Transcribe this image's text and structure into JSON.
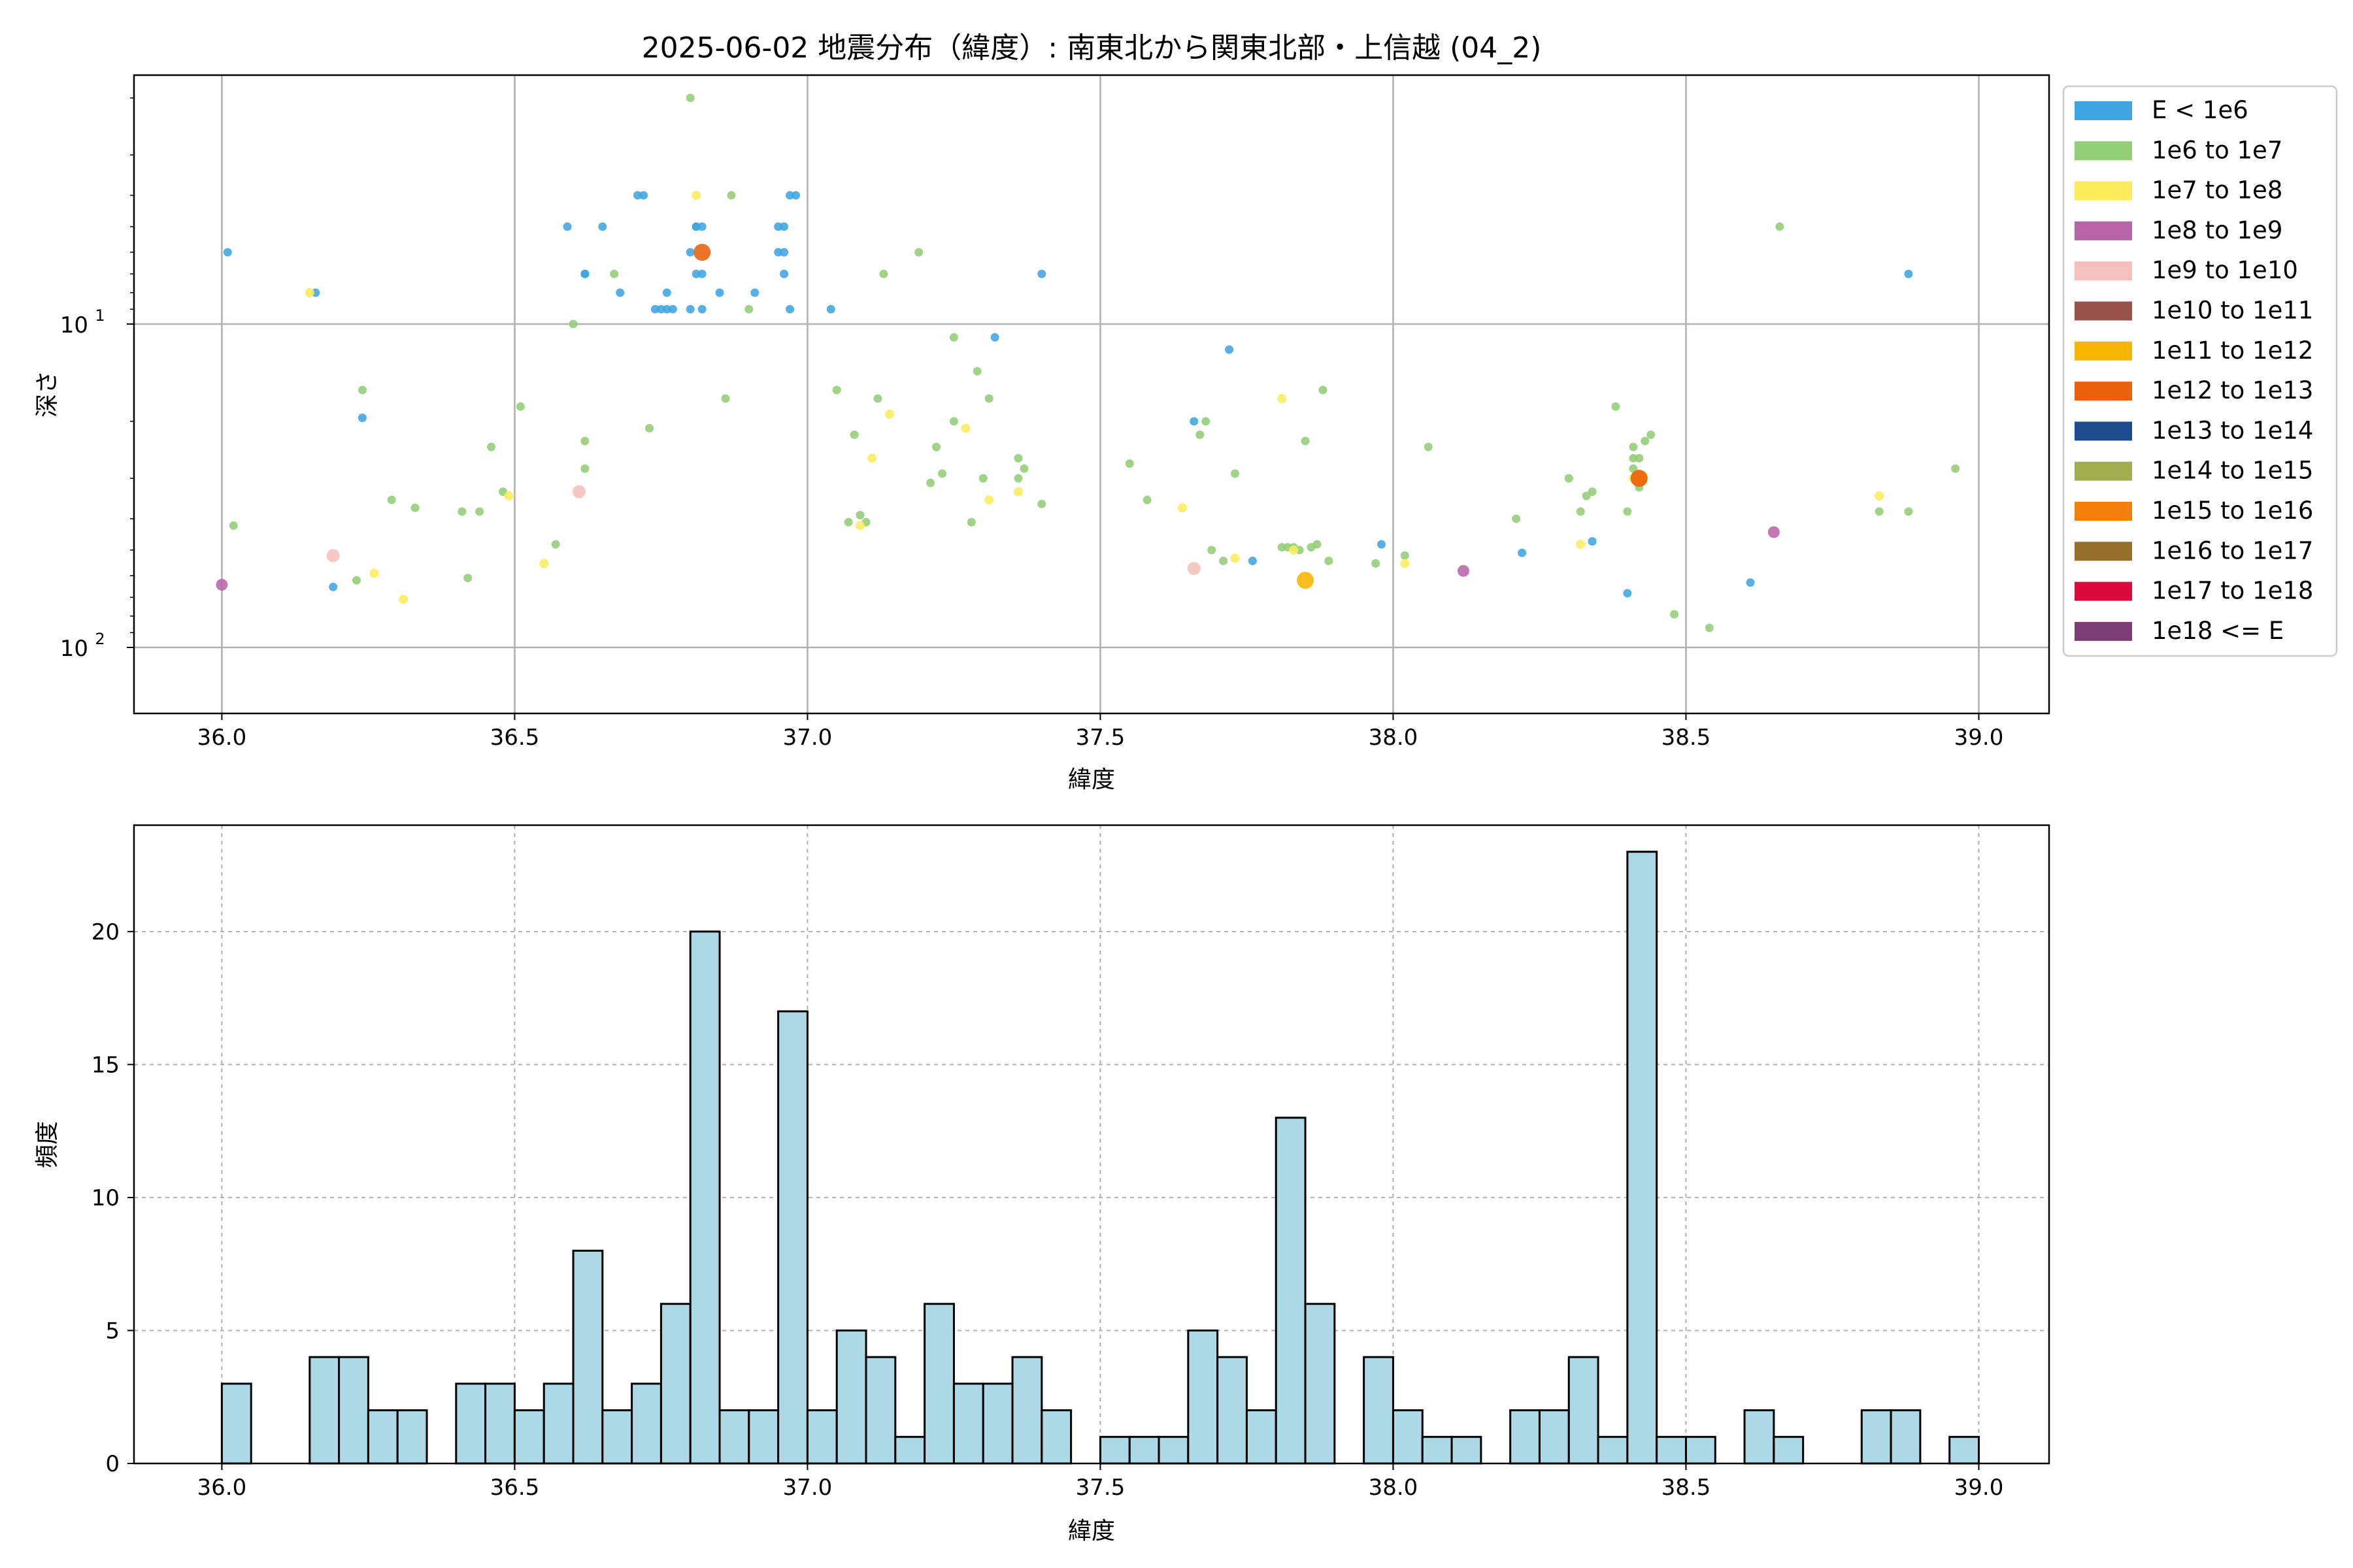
{
  "chart_data": [
    {
      "type": "scatter",
      "title": "2025-06-02 地震分布（緯度）: 南東北から関東北部・上信越 (04_2)",
      "xlabel": "緯度",
      "ylabel": "深さ",
      "xlim": [
        35.85,
        39.12
      ],
      "ylim": [
        160,
        1.7
      ],
      "yscale": "log",
      "y_inverted": true,
      "grid": true,
      "legend_position": "outside-right",
      "x_ticks": [
        "36.0",
        "36.5",
        "37.0",
        "37.5",
        "38.0",
        "38.5",
        "39.0"
      ],
      "y_ticks": [
        {
          "value": 10,
          "label": "10",
          "exp": "1"
        },
        {
          "value": 100,
          "label": "10",
          "exp": "2"
        }
      ],
      "legend": [
        {
          "label": "E < 1e6",
          "color": "#3fa5e0"
        },
        {
          "label": "1e6 to 1e7",
          "color": "#93cd77"
        },
        {
          "label": "1e7 to 1e8",
          "color": "#fcec5a"
        },
        {
          "label": "1e8 to 1e9",
          "color": "#b865a8"
        },
        {
          "label": "1e9 to 1e10",
          "color": "#f5c0bb"
        },
        {
          "label": "1e10 to 1e11",
          "color": "#97524b"
        },
        {
          "label": "1e11 to 1e12",
          "color": "#f7b500"
        },
        {
          "label": "1e12 to 1e13",
          "color": "#e9600d"
        },
        {
          "label": "1e13 to 1e14",
          "color": "#1e4a8e"
        },
        {
          "label": "1e14 to 1e15",
          "color": "#a1ae50"
        },
        {
          "label": "1e15 to 1e16",
          "color": "#f07f0c"
        },
        {
          "label": "1e16 to 1e17",
          "color": "#95702b"
        },
        {
          "label": "1e17 to 1e18",
          "color": "#dc0a3a"
        },
        {
          "label": "1e18 <= E",
          "color": "#7a3c72"
        }
      ],
      "series": [
        {
          "class": "E < 1e6",
          "color": "#3fa5e0",
          "points": [
            [
              36.01,
              6
            ],
            [
              36.16,
              8
            ],
            [
              36.19,
              65
            ],
            [
              36.24,
              19.5
            ],
            [
              36.59,
              5
            ],
            [
              36.62,
              7
            ],
            [
              36.62,
              7
            ],
            [
              36.65,
              5
            ],
            [
              36.68,
              8
            ],
            [
              36.71,
              4
            ],
            [
              36.72,
              4
            ],
            [
              36.74,
              9
            ],
            [
              36.75,
              9
            ],
            [
              36.76,
              9
            ],
            [
              36.76,
              8
            ],
            [
              36.77,
              9
            ],
            [
              36.8,
              6
            ],
            [
              36.81,
              5
            ],
            [
              36.81,
              5
            ],
            [
              36.81,
              7
            ],
            [
              36.82,
              5
            ],
            [
              36.82,
              7
            ],
            [
              36.82,
              9
            ],
            [
              36.8,
              9
            ],
            [
              36.85,
              8
            ],
            [
              36.91,
              8
            ],
            [
              36.95,
              5
            ],
            [
              36.95,
              6
            ],
            [
              36.96,
              5
            ],
            [
              36.96,
              7
            ],
            [
              36.96,
              6
            ],
            [
              36.97,
              4
            ],
            [
              36.97,
              9
            ],
            [
              36.98,
              4
            ],
            [
              37.04,
              9
            ],
            [
              37.32,
              11
            ],
            [
              37.4,
              7
            ],
            [
              37.66,
              20
            ],
            [
              37.72,
              12
            ],
            [
              37.76,
              54
            ],
            [
              37.98,
              48
            ],
            [
              38.22,
              51
            ],
            [
              38.34,
              47
            ],
            [
              38.4,
              68
            ],
            [
              38.61,
              63
            ],
            [
              38.88,
              7
            ]
          ]
        },
        {
          "class": "1e6 to 1e7",
          "color": "#93cd77",
          "points": [
            [
              36.02,
              42
            ],
            [
              36.23,
              62
            ],
            [
              36.24,
              16
            ],
            [
              36.29,
              35
            ],
            [
              36.33,
              37
            ],
            [
              36.41,
              38
            ],
            [
              36.42,
              61
            ],
            [
              36.44,
              38
            ],
            [
              36.46,
              24
            ],
            [
              36.48,
              33
            ],
            [
              36.51,
              18
            ],
            [
              36.57,
              48
            ],
            [
              36.6,
              10
            ],
            [
              36.62,
              23
            ],
            [
              36.62,
              28
            ],
            [
              36.67,
              7
            ],
            [
              36.73,
              21
            ],
            [
              36.8,
              2
            ],
            [
              36.86,
              17
            ],
            [
              36.87,
              4
            ],
            [
              36.9,
              9
            ],
            [
              37.05,
              16
            ],
            [
              37.07,
              41
            ],
            [
              37.08,
              22
            ],
            [
              37.09,
              39
            ],
            [
              37.1,
              41
            ],
            [
              37.12,
              17
            ],
            [
              37.13,
              7
            ],
            [
              37.19,
              6
            ],
            [
              37.21,
              31
            ],
            [
              37.22,
              24
            ],
            [
              37.23,
              29
            ],
            [
              37.25,
              11
            ],
            [
              37.25,
              20
            ],
            [
              37.28,
              41
            ],
            [
              37.29,
              14
            ],
            [
              37.3,
              30
            ],
            [
              37.31,
              17
            ],
            [
              37.36,
              26
            ],
            [
              37.37,
              28
            ],
            [
              37.36,
              30
            ],
            [
              37.4,
              36
            ],
            [
              37.55,
              27
            ],
            [
              37.58,
              35
            ],
            [
              37.67,
              22
            ],
            [
              37.68,
              20
            ],
            [
              37.69,
              50
            ],
            [
              37.71,
              54
            ],
            [
              37.73,
              29
            ],
            [
              37.81,
              49
            ],
            [
              37.82,
              49
            ],
            [
              37.83,
              49
            ],
            [
              37.84,
              50
            ],
            [
              37.85,
              23
            ],
            [
              37.86,
              49
            ],
            [
              37.87,
              48
            ],
            [
              37.88,
              16
            ],
            [
              37.89,
              54
            ],
            [
              37.97,
              55
            ],
            [
              38.02,
              52
            ],
            [
              38.06,
              24
            ],
            [
              38.21,
              40
            ],
            [
              38.3,
              30
            ],
            [
              38.32,
              38
            ],
            [
              38.33,
              34
            ],
            [
              38.34,
              33
            ],
            [
              38.38,
              18
            ],
            [
              38.4,
              38
            ],
            [
              38.41,
              24
            ],
            [
              38.41,
              26
            ],
            [
              38.41,
              28
            ],
            [
              38.42,
              30
            ],
            [
              38.42,
              32
            ],
            [
              38.42,
              26
            ],
            [
              38.43,
              23
            ],
            [
              38.44,
              22
            ],
            [
              38.48,
              79
            ],
            [
              38.54,
              87
            ],
            [
              38.66,
              5
            ],
            [
              38.83,
              38
            ],
            [
              38.88,
              38
            ],
            [
              38.96,
              28
            ]
          ]
        },
        {
          "class": "1e7 to 1e8",
          "color": "#fcec5a",
          "points": [
            [
              36.15,
              8
            ],
            [
              36.26,
              59
            ],
            [
              36.31,
              71
            ],
            [
              36.49,
              34
            ],
            [
              36.55,
              55
            ],
            [
              36.81,
              4
            ],
            [
              37.09,
              42
            ],
            [
              37.11,
              26
            ],
            [
              37.14,
              19
            ],
            [
              37.27,
              21
            ],
            [
              37.31,
              35
            ],
            [
              37.36,
              33
            ],
            [
              37.64,
              37
            ],
            [
              37.73,
              53
            ],
            [
              37.81,
              17
            ],
            [
              37.83,
              50
            ],
            [
              38.02,
              55
            ],
            [
              38.32,
              48
            ],
            [
              38.41,
              30
            ],
            [
              38.83,
              34
            ]
          ]
        },
        {
          "class": "1e8 to 1e9",
          "color": "#b865a8",
          "points": [
            [
              36.0,
              64
            ],
            [
              38.12,
              58
            ],
            [
              38.65,
              44
            ]
          ]
        },
        {
          "class": "1e9 to 1e10",
          "color": "#f5c0bb",
          "points": [
            [
              36.19,
              52
            ],
            [
              36.61,
              33
            ],
            [
              37.66,
              57
            ]
          ]
        },
        {
          "class": "1e11 to 1e12",
          "color": "#f7b500",
          "points": [
            [
              37.85,
              62
            ],
            [
              38.42,
              30
            ]
          ]
        },
        {
          "class": "1e12 to 1e13",
          "color": "#e9600d",
          "points": [
            [
              36.82,
              6
            ],
            [
              38.42,
              30
            ]
          ]
        }
      ]
    },
    {
      "type": "bar",
      "xlabel": "緯度",
      "ylabel": "頻度",
      "xlim": [
        35.85,
        39.12
      ],
      "ylim": [
        0,
        24
      ],
      "grid": true,
      "bar_color": "#add8e6",
      "edge_color": "#000000",
      "x_ticks": [
        "36.0",
        "36.5",
        "37.0",
        "37.5",
        "38.0",
        "38.5",
        "39.0"
      ],
      "y_ticks": [
        "0",
        "5",
        "10",
        "15",
        "20"
      ],
      "bin_width": 0.05,
      "bins_start": [
        36.0,
        36.05,
        36.1,
        36.15,
        36.2,
        36.25,
        36.3,
        36.35,
        36.4,
        36.45,
        36.5,
        36.55,
        36.6,
        36.65,
        36.7,
        36.75,
        36.8,
        36.85,
        36.9,
        36.95,
        37.0,
        37.05,
        37.1,
        37.15,
        37.2,
        37.25,
        37.3,
        37.35,
        37.4,
        37.45,
        37.5,
        37.55,
        37.6,
        37.65,
        37.7,
        37.75,
        37.8,
        37.85,
        37.9,
        37.95,
        38.0,
        38.05,
        38.1,
        38.15,
        38.2,
        38.25,
        38.3,
        38.35,
        38.4,
        38.45,
        38.5,
        38.55,
        38.6,
        38.65,
        38.7,
        38.75,
        38.8,
        38.85,
        38.9,
        38.95
      ],
      "values": [
        3,
        0,
        0,
        4,
        4,
        2,
        2,
        0,
        3,
        3,
        2,
        3,
        8,
        2,
        3,
        6,
        20,
        2,
        2,
        17,
        2,
        5,
        4,
        1,
        6,
        3,
        3,
        4,
        2,
        0,
        1,
        1,
        1,
        5,
        4,
        2,
        13,
        6,
        0,
        4,
        2,
        1,
        1,
        0,
        2,
        2,
        4,
        1,
        23,
        1,
        1,
        0,
        2,
        1,
        0,
        0,
        2,
        2,
        0,
        1
      ]
    }
  ]
}
